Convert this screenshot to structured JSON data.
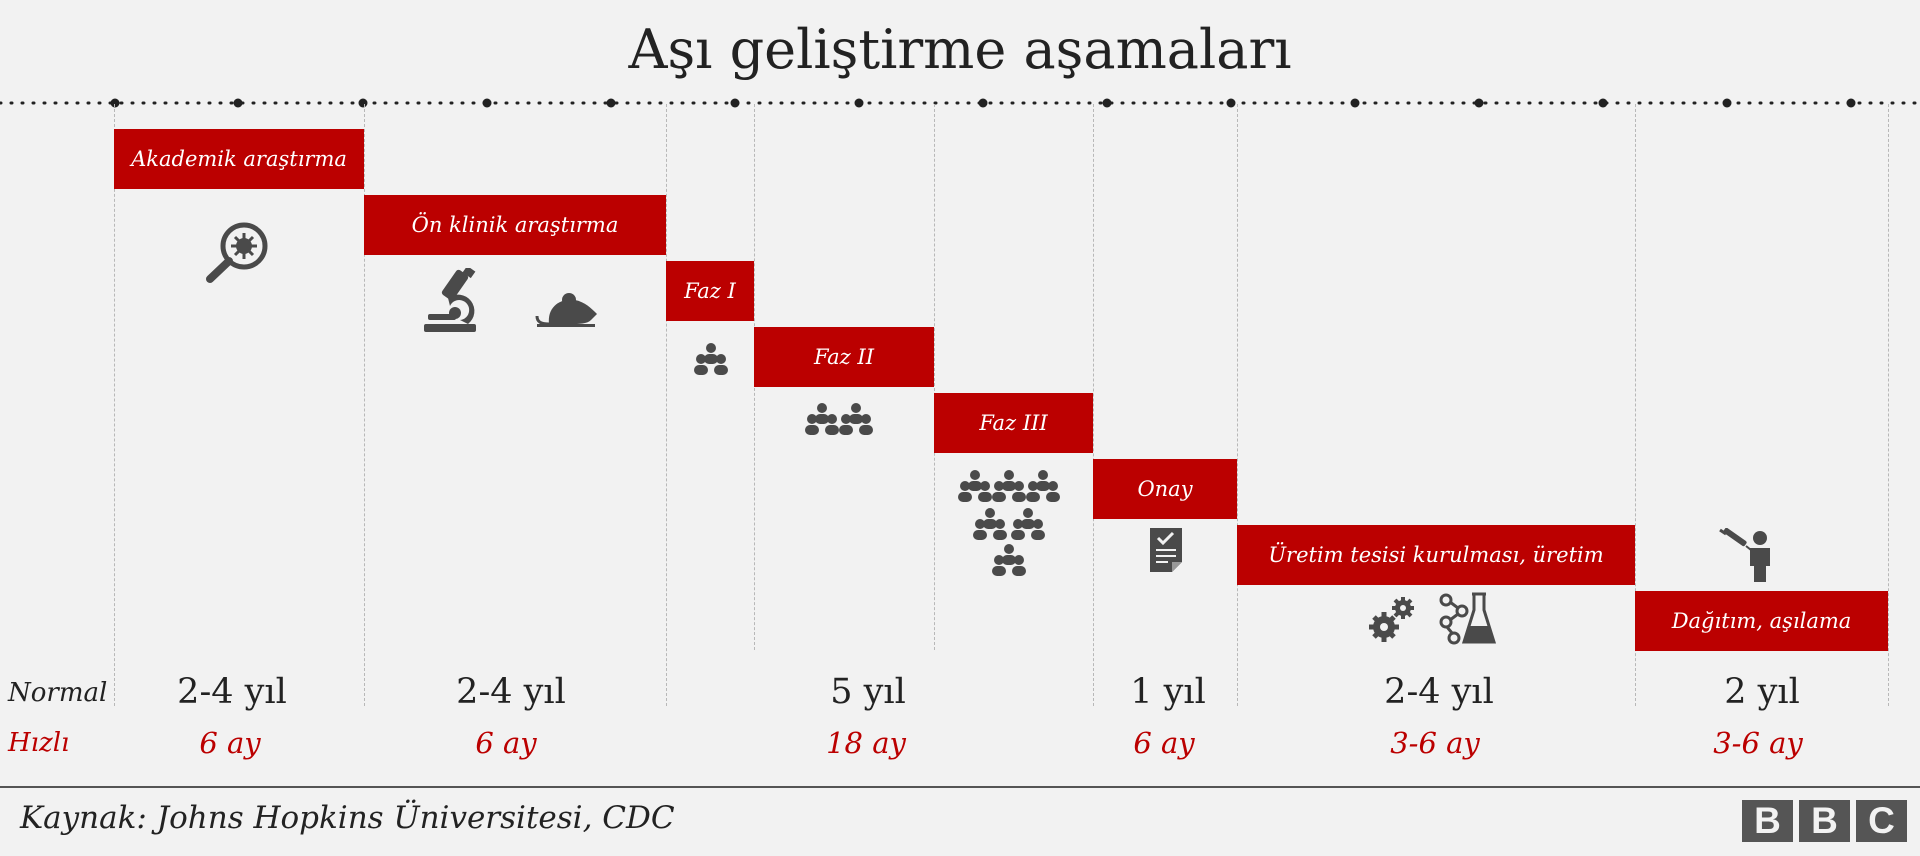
{
  "title": "Aşı geliştirme aşamaları",
  "row_labels": {
    "normal": "Normal",
    "fast": "Hızlı"
  },
  "stages": [
    {
      "label": "Akademik araştırma"
    },
    {
      "label": "Ön klinik araştırma"
    },
    {
      "label": "Faz I"
    },
    {
      "label": "Faz II"
    },
    {
      "label": "Faz III"
    },
    {
      "label": "Onay"
    },
    {
      "label": "Üretim tesisi kurulması, üretim"
    },
    {
      "label": "Dağıtım, aşılama"
    }
  ],
  "durations": [
    {
      "normal": "2-4 yıl",
      "fast": "6 ay"
    },
    {
      "normal": "2-4 yıl",
      "fast": "6 ay"
    },
    {
      "normal": "5 yıl",
      "fast": "18 ay"
    },
    {
      "normal": "1 yıl",
      "fast": "6 ay"
    },
    {
      "normal": "2-4 yıl",
      "fast": "3-6 ay"
    },
    {
      "normal": "2 yıl",
      "fast": "3-6 ay"
    }
  ],
  "source": "Kaynak: Johns Hopkins Üniversitesi, CDC",
  "logo": [
    "B",
    "B",
    "C"
  ],
  "icons": [
    "virus-magnifier-icon",
    "microscope-icon",
    "mouse-icon",
    "people-group-icon",
    "document-check-icon",
    "gears-icon",
    "chemistry-flask-icon",
    "vaccination-person-icon"
  ],
  "colors": {
    "accent": "#bb0000",
    "background": "#f2f2f2",
    "icon": "#4a4a4a",
    "text": "#222222"
  }
}
